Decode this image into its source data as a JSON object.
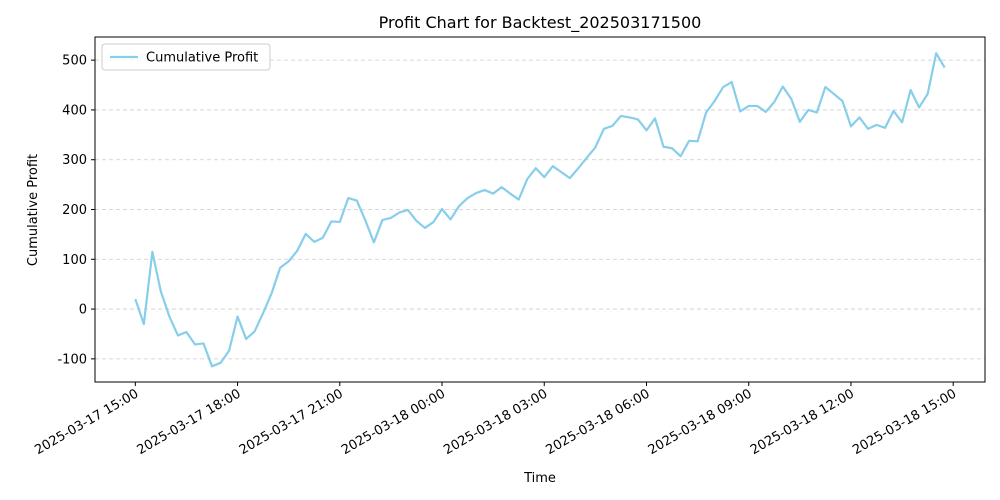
{
  "chart_data": {
    "type": "line",
    "title": "Profit Chart for Backtest_202503171500",
    "xlabel": "Time",
    "ylabel": "Cumulative Profit",
    "x": [
      "2025-03-17 15:00",
      "2025-03-17 15:15",
      "2025-03-17 15:30",
      "2025-03-17 15:45",
      "2025-03-17 16:00",
      "2025-03-17 16:15",
      "2025-03-17 16:30",
      "2025-03-17 16:45",
      "2025-03-17 17:00",
      "2025-03-17 17:15",
      "2025-03-17 17:30",
      "2025-03-17 17:45",
      "2025-03-17 18:00",
      "2025-03-17 18:15",
      "2025-03-17 18:30",
      "2025-03-17 18:45",
      "2025-03-17 19:00",
      "2025-03-17 19:15",
      "2025-03-17 19:30",
      "2025-03-17 19:45",
      "2025-03-17 20:00",
      "2025-03-17 20:15",
      "2025-03-17 20:30",
      "2025-03-17 20:45",
      "2025-03-17 21:00",
      "2025-03-17 21:15",
      "2025-03-17 21:30",
      "2025-03-17 21:45",
      "2025-03-17 22:00",
      "2025-03-17 22:15",
      "2025-03-17 22:30",
      "2025-03-17 22:45",
      "2025-03-17 23:00",
      "2025-03-17 23:15",
      "2025-03-17 23:30",
      "2025-03-17 23:45",
      "2025-03-18 00:00",
      "2025-03-18 00:15",
      "2025-03-18 00:30",
      "2025-03-18 00:45",
      "2025-03-18 01:00",
      "2025-03-18 01:15",
      "2025-03-18 01:30",
      "2025-03-18 01:45",
      "2025-03-18 02:00",
      "2025-03-18 02:15",
      "2025-03-18 02:30",
      "2025-03-18 02:45",
      "2025-03-18 03:00",
      "2025-03-18 03:15",
      "2025-03-18 03:30",
      "2025-03-18 03:45",
      "2025-03-18 04:00",
      "2025-03-18 04:15",
      "2025-03-18 04:30",
      "2025-03-18 04:45",
      "2025-03-18 05:00",
      "2025-03-18 05:15",
      "2025-03-18 05:30",
      "2025-03-18 05:45",
      "2025-03-18 06:00",
      "2025-03-18 06:15",
      "2025-03-18 06:30",
      "2025-03-18 06:45",
      "2025-03-18 07:00",
      "2025-03-18 07:15",
      "2025-03-18 07:30",
      "2025-03-18 07:45",
      "2025-03-18 08:00",
      "2025-03-18 08:15",
      "2025-03-18 08:30",
      "2025-03-18 08:45",
      "2025-03-18 09:00",
      "2025-03-18 09:15",
      "2025-03-18 09:30",
      "2025-03-18 09:45",
      "2025-03-18 10:00",
      "2025-03-18 10:15",
      "2025-03-18 10:30",
      "2025-03-18 10:45",
      "2025-03-18 11:00",
      "2025-03-18 11:15",
      "2025-03-18 11:30",
      "2025-03-18 11:45",
      "2025-03-18 12:00",
      "2025-03-18 12:15",
      "2025-03-18 12:30",
      "2025-03-18 12:45",
      "2025-03-18 13:00",
      "2025-03-18 13:15",
      "2025-03-18 13:30",
      "2025-03-18 13:45",
      "2025-03-18 14:00",
      "2025-03-18 14:15",
      "2025-03-18 14:30",
      "2025-03-18 14:45"
    ],
    "series": [
      {
        "name": "Cumulative Profit",
        "color": "#87ceeb",
        "values": [
          20,
          -30,
          115,
          35,
          -15,
          -53,
          -46,
          -71,
          -69,
          -115,
          -108,
          -84,
          -15,
          -60,
          -45,
          -8,
          32,
          83,
          96,
          117,
          151,
          135,
          143,
          176,
          175,
          223,
          218,
          178,
          134,
          179,
          183,
          194,
          199,
          177,
          163,
          175,
          201,
          180,
          207,
          223,
          233,
          239,
          232,
          245,
          232,
          220,
          261,
          283,
          265,
          287,
          275,
          263,
          283,
          304,
          325,
          362,
          368,
          388,
          385,
          381,
          359,
          383,
          326,
          323,
          307,
          338,
          337,
          395,
          418,
          446,
          456,
          397,
          408,
          408,
          396,
          416,
          447,
          422,
          376,
          400,
          395,
          446,
          432,
          418,
          367,
          385,
          362,
          370,
          364,
          398,
          375,
          440,
          405,
          432,
          514,
          485
        ]
      }
    ],
    "xlim": [
      "2025-03-17 13:49",
      "2025-03-18 15:56"
    ],
    "xticks": [
      "2025-03-17 15:00",
      "2025-03-17 18:00",
      "2025-03-17 21:00",
      "2025-03-18 00:00",
      "2025-03-18 03:00",
      "2025-03-18 06:00",
      "2025-03-18 09:00",
      "2025-03-18 12:00",
      "2025-03-18 15:00"
    ],
    "ylim": [
      -146.5,
      546.5
    ],
    "yticks": [
      -100,
      0,
      100,
      200,
      300,
      400,
      500
    ],
    "grid": "y",
    "legend": "upper left"
  }
}
